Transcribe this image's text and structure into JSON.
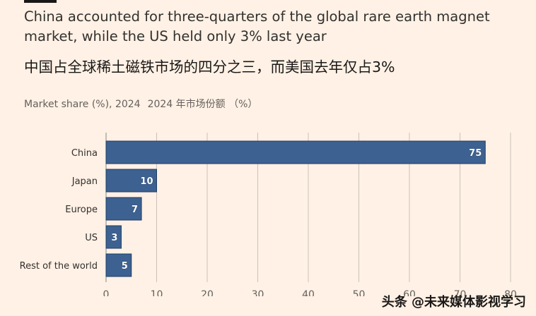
{
  "title_en": "China accounted for three-quarters of the global rare earth magnet market, while the US held only 3% last year",
  "title_zh": "中国占全球稀土磁铁市场的四分之三，而美国去年仅占3%",
  "subtitle_en": "Market share (%), 2024",
  "subtitle_zh": "2024 年市场份额 （%）",
  "watermark": "头条 @未来媒体影视学习",
  "colors": {
    "background": "#fff1e5",
    "bar": "#3d6190",
    "bar_edge": "#1f3f66",
    "grid": "#ccc1b7",
    "text": "#33302e",
    "axis_text": "#66605c"
  },
  "chart_data": {
    "type": "bar",
    "orientation": "horizontal",
    "categories": [
      "China",
      "Japan",
      "Europe",
      "US",
      "Rest of the world"
    ],
    "values": [
      75,
      10,
      7,
      3,
      5
    ],
    "xlim": [
      0,
      80
    ],
    "xticks": [
      0,
      10,
      20,
      30,
      40,
      50,
      60,
      70,
      80
    ],
    "grid": true,
    "data_labels": true
  }
}
